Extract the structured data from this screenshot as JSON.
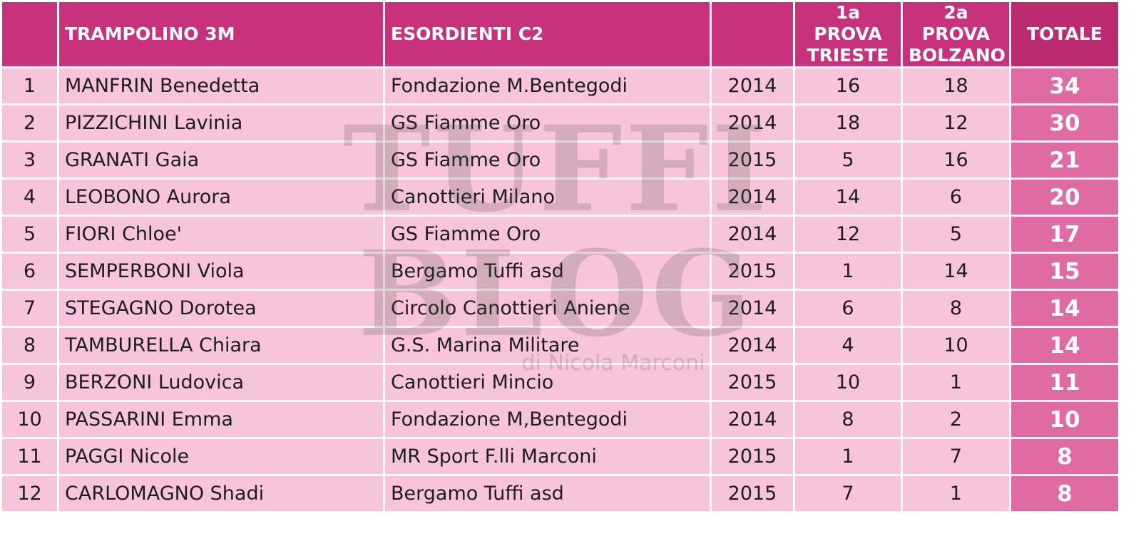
{
  "header": {
    "title": "TRAMPOLINO 3M",
    "category": "ESORDIENTI C2",
    "columns": [
      "1a PROVA\nTRIESTE",
      "2a PROVA\nBOLZANO",
      "TOTALE"
    ]
  },
  "table": {
    "rows": [
      [
        1,
        "MANFRIN Benedetta",
        "Fondazione M.Bentegodi",
        2014,
        16,
        18,
        34
      ],
      [
        2,
        "PIZZICHINI Lavinia",
        "GS Fiamme Oro",
        2014,
        18,
        12,
        30
      ],
      [
        3,
        "GRANATI Gaia",
        "GS Fiamme Oro",
        2015,
        5,
        16,
        21
      ],
      [
        4,
        "LEOBONO Aurora",
        "Canottieri Milano",
        2014,
        14,
        6,
        20
      ],
      [
        5,
        "FIORI Chloe'",
        "GS Fiamme Oro",
        2014,
        12,
        5,
        17
      ],
      [
        6,
        "SEMPERBONI Viola",
        "Bergamo Tuffi asd",
        2015,
        1,
        14,
        15
      ],
      [
        7,
        "STEGAGNO Dorotea",
        "Circolo Canottieri Aniene",
        2014,
        6,
        8,
        14
      ],
      [
        8,
        "TAMBURELLA Chiara",
        "G.S. Marina Militare",
        2014,
        4,
        10,
        14
      ],
      [
        9,
        "BERZONI Ludovica",
        "Canottieri Mincio",
        2015,
        10,
        1,
        11
      ],
      [
        10,
        "PASSARINI Emma",
        "Fondazione M,Bentegodi",
        2014,
        8,
        2,
        10
      ],
      [
        11,
        "PAGGI Nicole",
        "MR Sport F.lli Marconi",
        2015,
        1,
        7,
        8
      ],
      [
        12,
        "CARLOMAGNO Shadi",
        "Bergamo Tuffi asd",
        2015,
        7,
        1,
        8
      ]
    ]
  },
  "watermark": {
    "lines": [
      "TUFFI",
      "BLOG"
    ],
    "byline": "di Nicola Marconi"
  }
}
